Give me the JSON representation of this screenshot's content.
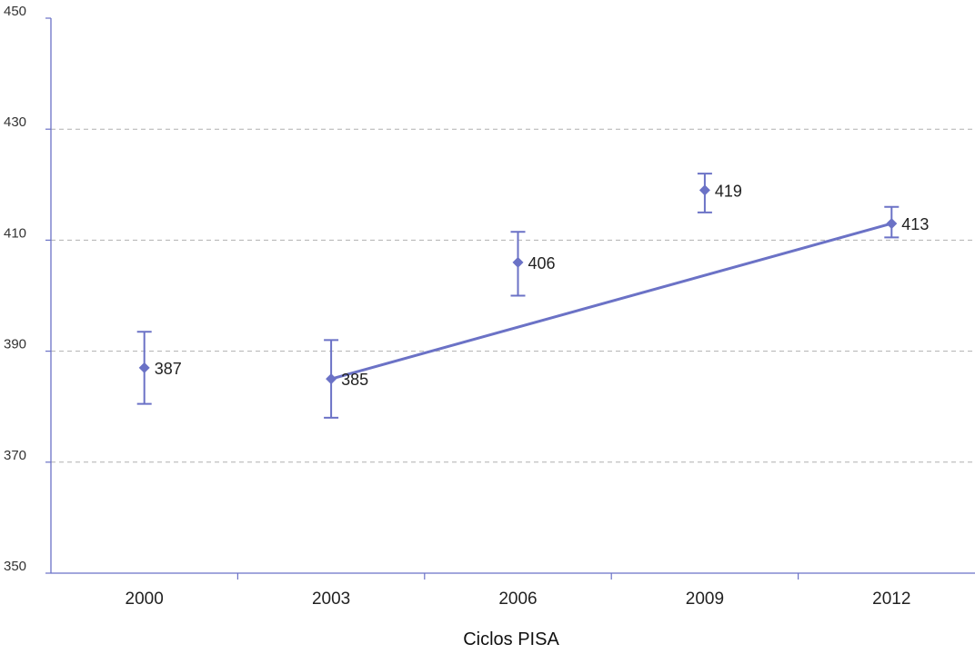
{
  "chart_data": {
    "type": "line",
    "xlabel": "Ciclos PISA",
    "ylabel": "",
    "ylim": [
      350,
      450
    ],
    "yticks": [
      350,
      370,
      390,
      410,
      430,
      450
    ],
    "categories": [
      "2000",
      "2003",
      "2006",
      "2009",
      "2012"
    ],
    "series": [
      {
        "values": [
          387,
          385,
          406,
          419,
          413
        ],
        "labels": [
          "387",
          "385",
          "406",
          "419",
          "413"
        ],
        "error_low": [
          380.5,
          378,
          400,
          415,
          410.5
        ],
        "error_high": [
          393.5,
          392,
          411.5,
          422,
          416
        ],
        "trend_line_points": [
          1,
          4
        ]
      }
    ],
    "grid": "horizontal dashed",
    "colors": {
      "series": "#6b72c6",
      "axis": "#6b72c6",
      "grid": "#b0b0b0"
    }
  }
}
